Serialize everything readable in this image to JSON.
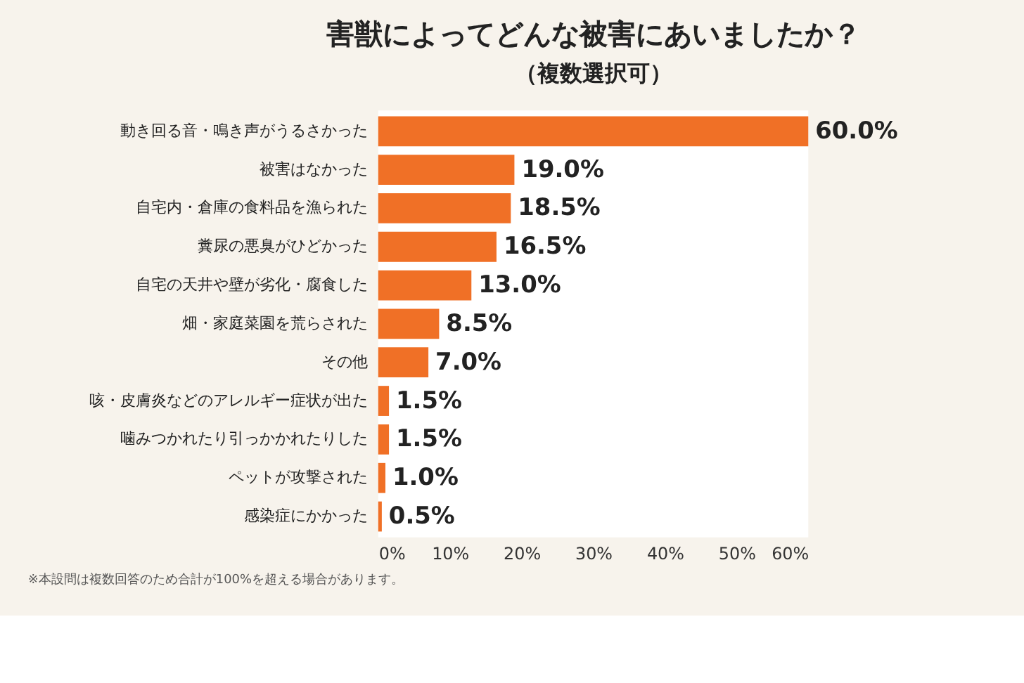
{
  "chart_data": {
    "type": "bar",
    "orientation": "horizontal",
    "title": "害獣によってどんな被害にあいましたか？",
    "subtitle": "（複数選択可）",
    "categories": [
      "動き回る音・鳴き声がうるさかった",
      "被害はなかった",
      "自宅内・倉庫の食料品を漁られた",
      "糞尿の悪臭がひどかった",
      "自宅の天井や壁が劣化・腐食した",
      "畑・家庭菜園を荒らされた",
      "その他",
      "咳・皮膚炎などのアレルギー症状が出た",
      "噛みつかれたり引っかかれたりした",
      "ペットが攻撃された",
      "感染症にかかった"
    ],
    "values": [
      60.0,
      19.0,
      18.5,
      16.5,
      13.0,
      8.5,
      7.0,
      1.5,
      1.5,
      1.0,
      0.5
    ],
    "value_labels": [
      "60.0%",
      "19.0%",
      "18.5%",
      "16.5%",
      "13.0%",
      "8.5%",
      "7.0%",
      "1.5%",
      "1.5%",
      "1.0%",
      "0.5%"
    ],
    "color": "#f07026",
    "xlim": [
      0,
      60
    ],
    "xticks": [
      {
        "value": 0,
        "label": "0%"
      },
      {
        "value": 10,
        "label": "10%"
      },
      {
        "value": 20,
        "label": "20%"
      },
      {
        "value": 30,
        "label": "30%"
      },
      {
        "value": 40,
        "label": "40%"
      },
      {
        "value": 50,
        "label": "50%"
      },
      {
        "value": 60,
        "label": "60%"
      }
    ],
    "grid": false,
    "annotations": [
      "※本設問は複数回答のため合計が100%を超える場合があります。"
    ]
  }
}
